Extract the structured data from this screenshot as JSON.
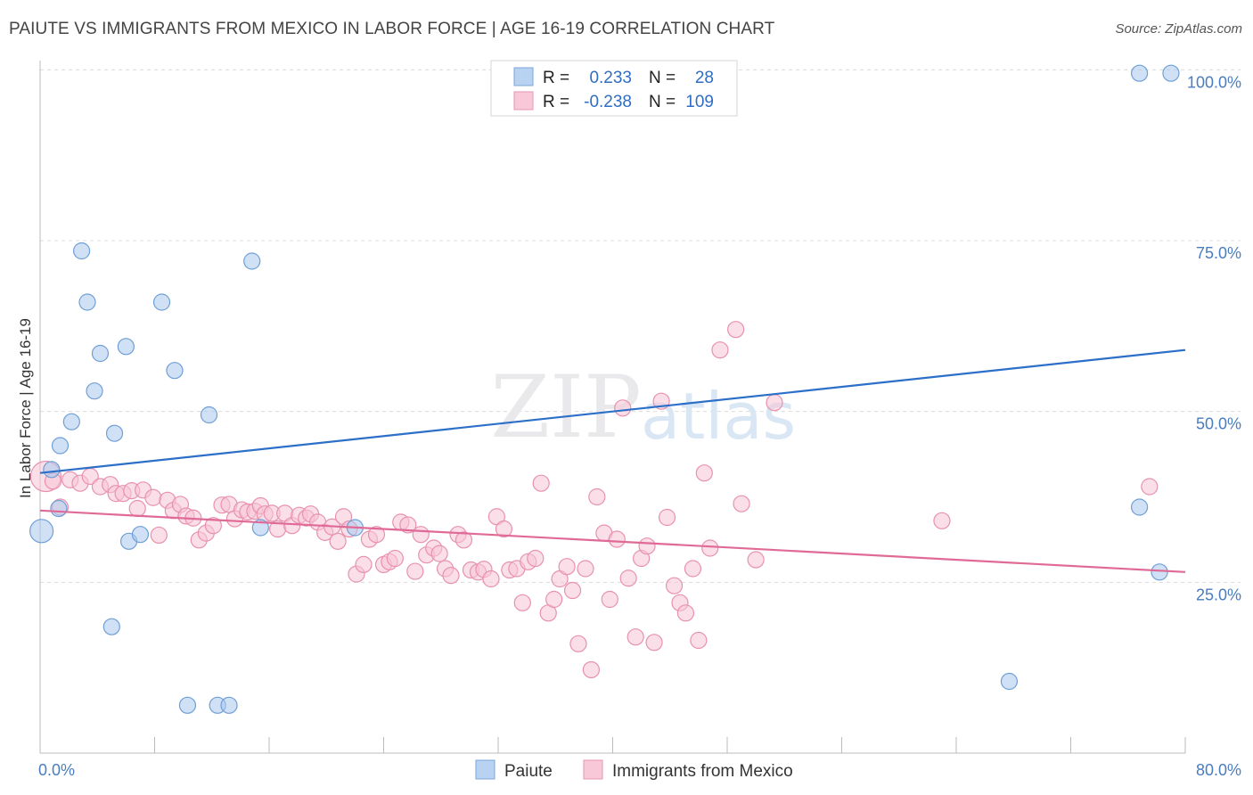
{
  "title": "PAIUTE VS IMMIGRANTS FROM MEXICO IN LABOR FORCE | AGE 16-19 CORRELATION CHART",
  "source": "Source: ZipAtlas.com",
  "watermark": {
    "zip": "ZIP",
    "atlas": "atlas"
  },
  "chart_data": {
    "type": "scatter",
    "ylabel": "In Labor Force | Age 16-19",
    "xlim": [
      0,
      80
    ],
    "ylim": [
      0,
      105
    ],
    "x_tick_labels": [
      {
        "value": 0,
        "label": "0.0%"
      },
      {
        "value": 80,
        "label": "80.0%"
      }
    ],
    "y_tick_labels": [
      {
        "value": 25,
        "label": "25.0%"
      },
      {
        "value": 50,
        "label": "50.0%"
      },
      {
        "value": 75,
        "label": "75.0%"
      },
      {
        "value": 100,
        "label": "100.0%"
      }
    ],
    "legend": [
      {
        "r_label": "R =",
        "r_value": "0.233",
        "n_label": "N =",
        "n_value": "28"
      },
      {
        "r_label": "R =",
        "r_value": "-0.238",
        "n_label": "N =",
        "n_value": "109"
      }
    ],
    "series": [
      {
        "name": "Paiute",
        "color": "#a9c8ee",
        "stroke": "#6f9fd6",
        "line_color": "#2c6fc9",
        "trend": {
          "x": [
            0,
            80
          ],
          "y": [
            41,
            59
          ]
        },
        "points": [
          [
            0.1,
            32.5
          ],
          [
            0.8,
            41.5
          ],
          [
            1.3,
            35.8
          ],
          [
            1.4,
            45
          ],
          [
            2.2,
            48.5
          ],
          [
            2.9,
            73.5
          ],
          [
            3.3,
            66
          ],
          [
            4.2,
            58.5
          ],
          [
            3.8,
            53
          ],
          [
            5.2,
            46.8
          ],
          [
            6.0,
            59.5
          ],
          [
            6.2,
            31
          ],
          [
            7.0,
            32
          ],
          [
            5.0,
            18.5
          ],
          [
            8.5,
            66
          ],
          [
            9.4,
            56
          ],
          [
            10.3,
            7
          ],
          [
            11.8,
            49.5
          ],
          [
            12.4,
            7
          ],
          [
            13.2,
            7
          ],
          [
            14.8,
            72
          ],
          [
            15.4,
            33
          ],
          [
            22.0,
            33
          ],
          [
            67.7,
            10.5
          ],
          [
            76.8,
            36
          ],
          [
            78.2,
            26.5
          ],
          [
            76.8,
            99.5
          ],
          [
            79.0,
            99.5
          ]
        ]
      },
      {
        "name": "Immigrants from Mexico",
        "color": "#f7c5d6",
        "stroke": "#e891ae",
        "line_color": "#e06a96",
        "trend": {
          "x": [
            0,
            80
          ],
          "y": [
            35.5,
            26.5
          ]
        },
        "points": [
          [
            0.4,
            40.5
          ],
          [
            0.9,
            39.8
          ],
          [
            1.4,
            36
          ],
          [
            2.1,
            40
          ],
          [
            2.8,
            39.5
          ],
          [
            3.5,
            40.5
          ],
          [
            4.2,
            39
          ],
          [
            4.9,
            39.3
          ],
          [
            5.3,
            38
          ],
          [
            5.8,
            38
          ],
          [
            6.4,
            38.4
          ],
          [
            6.8,
            35.8
          ],
          [
            7.2,
            38.5
          ],
          [
            7.9,
            37.4
          ],
          [
            8.3,
            31.9
          ],
          [
            8.9,
            37
          ],
          [
            9.3,
            35.5
          ],
          [
            9.8,
            36.4
          ],
          [
            10.2,
            34.7
          ],
          [
            10.7,
            34.4
          ],
          [
            11.1,
            31.2
          ],
          [
            11.6,
            32.2
          ],
          [
            12.1,
            33.3
          ],
          [
            12.7,
            36.3
          ],
          [
            13.2,
            36.4
          ],
          [
            13.6,
            34.3
          ],
          [
            14.1,
            35.6
          ],
          [
            14.5,
            35.3
          ],
          [
            15.0,
            35.4
          ],
          [
            15.4,
            36.2
          ],
          [
            15.7,
            35
          ],
          [
            16.2,
            35.1
          ],
          [
            16.6,
            32.8
          ],
          [
            17.1,
            35.1
          ],
          [
            17.6,
            33.3
          ],
          [
            18.1,
            34.8
          ],
          [
            18.6,
            34.4
          ],
          [
            18.9,
            35
          ],
          [
            19.4,
            33.8
          ],
          [
            19.9,
            32.3
          ],
          [
            20.4,
            33.1
          ],
          [
            20.8,
            31
          ],
          [
            21.2,
            34.6
          ],
          [
            21.6,
            32.8
          ],
          [
            22.1,
            26.2
          ],
          [
            22.6,
            27.6
          ],
          [
            23.0,
            31.3
          ],
          [
            23.5,
            32
          ],
          [
            24.0,
            27.6
          ],
          [
            24.4,
            28
          ],
          [
            24.8,
            28.5
          ],
          [
            25.2,
            33.8
          ],
          [
            25.7,
            33.4
          ],
          [
            26.2,
            26.6
          ],
          [
            26.6,
            32
          ],
          [
            27.0,
            29
          ],
          [
            27.5,
            30
          ],
          [
            27.9,
            29.2
          ],
          [
            28.3,
            27
          ],
          [
            28.7,
            26
          ],
          [
            29.2,
            32
          ],
          [
            29.6,
            31.2
          ],
          [
            30.1,
            26.8
          ],
          [
            30.6,
            26.5
          ],
          [
            31.0,
            26.9
          ],
          [
            31.5,
            25.5
          ],
          [
            31.9,
            34.6
          ],
          [
            32.4,
            32.8
          ],
          [
            32.8,
            26.8
          ],
          [
            33.3,
            27
          ],
          [
            33.7,
            22
          ],
          [
            34.1,
            28
          ],
          [
            34.6,
            28.5
          ],
          [
            35.0,
            39.5
          ],
          [
            35.5,
            20.5
          ],
          [
            35.9,
            22.5
          ],
          [
            36.3,
            25.5
          ],
          [
            36.8,
            27.3
          ],
          [
            37.2,
            23.8
          ],
          [
            37.6,
            16
          ],
          [
            38.1,
            27
          ],
          [
            38.5,
            12.2
          ],
          [
            38.9,
            37.5
          ],
          [
            39.4,
            32.2
          ],
          [
            39.8,
            22.5
          ],
          [
            40.3,
            31.3
          ],
          [
            40.7,
            50.5
          ],
          [
            41.1,
            25.6
          ],
          [
            41.6,
            17
          ],
          [
            42.0,
            28.5
          ],
          [
            42.4,
            30.3
          ],
          [
            42.9,
            16.2
          ],
          [
            43.4,
            51.5
          ],
          [
            43.8,
            34.5
          ],
          [
            44.3,
            24.5
          ],
          [
            44.7,
            22
          ],
          [
            45.1,
            20.5
          ],
          [
            45.6,
            27
          ],
          [
            46.0,
            16.5
          ],
          [
            46.4,
            41
          ],
          [
            46.8,
            30
          ],
          [
            47.5,
            59
          ],
          [
            48.6,
            62
          ],
          [
            49.0,
            36.5
          ],
          [
            50.0,
            28.3
          ],
          [
            51.3,
            51.3
          ],
          [
            63.0,
            34
          ],
          [
            77.5,
            39
          ]
        ]
      }
    ]
  }
}
